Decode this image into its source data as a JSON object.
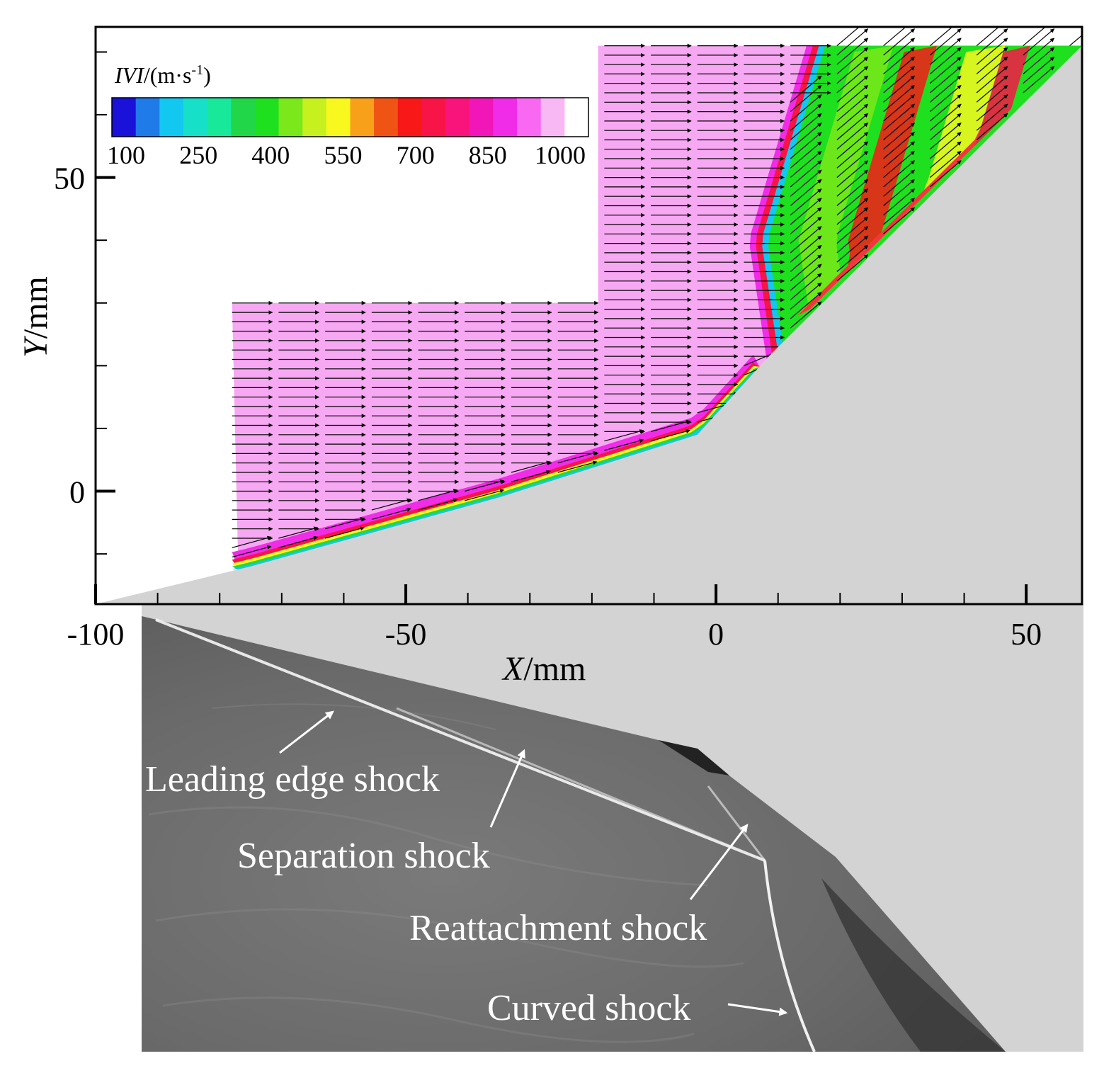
{
  "chart_data": {
    "type": "contour+vector",
    "title": "",
    "xlabel_italic": "X",
    "xlabel_unit": "/mm",
    "ylabel_italic": "Y",
    "ylabel_unit": "/mm",
    "xlim": [
      -100,
      59
    ],
    "ylim": [
      -18,
      74
    ],
    "x_ticks": [
      -100,
      -50,
      0,
      50
    ],
    "x_tick_labels": [
      "-100",
      "-50",
      "0",
      "50"
    ],
    "x_minor_step": 10,
    "y_ticks": [
      0,
      50
    ],
    "y_tick_labels": [
      "0",
      "50"
    ],
    "y_minor_step": 10,
    "colorbar": {
      "title_italic": "IVI",
      "title_unit": "/(m·s",
      "title_sup": "-1",
      "title_close": ")",
      "min": 100,
      "max": 1000,
      "tick_values": [
        100,
        250,
        400,
        550,
        700,
        850,
        1000
      ],
      "tick_labels": [
        "100",
        "250",
        "400",
        "550",
        "700",
        "850",
        "1000"
      ],
      "colors": [
        "#1a12d8",
        "#1f7be8",
        "#12c8f0",
        "#16e0c8",
        "#18e89a",
        "#22d64a",
        "#1ee01e",
        "#7ae81a",
        "#c6f01e",
        "#f8f81e",
        "#f8a01a",
        "#f05414",
        "#f81818",
        "#f81446",
        "#f8147a",
        "#f016b8",
        "#f02ce8",
        "#f868f0",
        "#f8b8f4",
        "#ffffff"
      ]
    },
    "geometry": {
      "wedge_surface": [
        [
          -100,
          -18
        ],
        [
          -75,
          -12
        ],
        [
          -35,
          -1
        ],
        [
          -3,
          9
        ],
        [
          9,
          22
        ],
        [
          59,
          71
        ]
      ],
      "piv_region_lower": [
        [
          -78,
          -12
        ],
        [
          -78,
          30
        ],
        [
          -19,
          30
        ]
      ],
      "piv_region_upper": [
        [
          -19,
          71
        ],
        [
          24,
          71
        ]
      ],
      "freestream_velocity": 1000
    },
    "schlieren_annotations": [
      "Leading edge shock",
      "Separation shock",
      "Reattachment shock",
      "Curved shock"
    ]
  }
}
